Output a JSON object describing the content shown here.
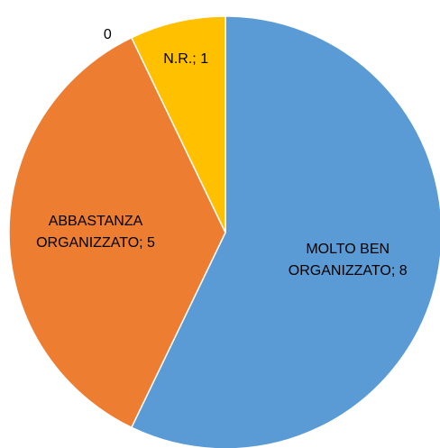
{
  "chart_data": {
    "type": "pie",
    "categories": [
      "MOLTO BEN ORGANIZZATO",
      "ABBASTANZA ORGANIZZATO",
      "N.R.",
      null
    ],
    "values": [
      8,
      5,
      1,
      0
    ],
    "value_labels": [
      "MOLTO BEN ORGANIZZATO; 8",
      "ABBASTANZA ORGANIZZATO; 5",
      "N.R.; 1",
      "0"
    ],
    "colors": [
      "#5b9bd5",
      "#ed7d31",
      "#ffc000",
      "#a5a5a5"
    ]
  }
}
